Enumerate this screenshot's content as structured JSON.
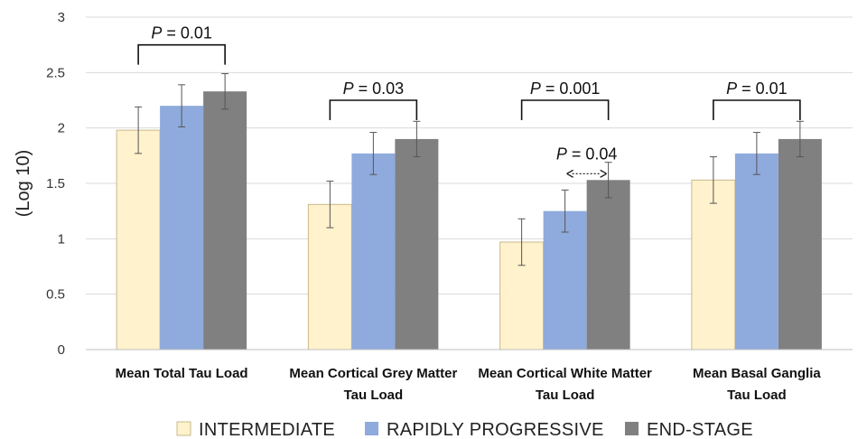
{
  "chart_data": {
    "type": "bar",
    "ylabel": "(Log 10)",
    "ylim": [
      0,
      3
    ],
    "yticks": [
      "0",
      "0.5",
      "1",
      "1.5",
      "2",
      "2.5",
      "3"
    ],
    "grid": true,
    "legend_position": "bottom",
    "categories": [
      [
        "Mean Total Tau Load"
      ],
      [
        "Mean Cortical Grey Matter",
        "Tau Load"
      ],
      [
        "Mean Cortical White Matter",
        "Tau Load"
      ],
      [
        "Mean Basal Ganglia",
        "Tau Load"
      ]
    ],
    "series": [
      {
        "name": "INTERMEDIATE",
        "color": "#fff2cc",
        "values": [
          1.98,
          1.31,
          0.97,
          1.53
        ],
        "errors": [
          0.21,
          0.21,
          0.21,
          0.21
        ]
      },
      {
        "name": "RAPIDLY PROGRESSIVE",
        "color": "#8faadc",
        "values": [
          2.2,
          1.77,
          1.25,
          1.77
        ],
        "errors": [
          0.19,
          0.19,
          0.19,
          0.19
        ]
      },
      {
        "name": "END-STAGE",
        "color": "#808080",
        "values": [
          2.33,
          1.9,
          1.53,
          1.9
        ],
        "errors": [
          0.16,
          0.16,
          0.16,
          0.16
        ]
      }
    ],
    "annotations": [
      {
        "label_prefix": "P",
        "label_value": " = 0.01",
        "category": 0,
        "from_series": 0,
        "to_series": 2,
        "level": 2.75,
        "style": "bracket"
      },
      {
        "label_prefix": "P",
        "label_value": " = 0.03",
        "category": 1,
        "from_series": 0,
        "to_series": 2,
        "level": 2.25,
        "style": "bracket"
      },
      {
        "label_prefix": "P",
        "label_value": " = 0.001",
        "category": 2,
        "from_series": 0,
        "to_series": 2,
        "level": 2.25,
        "style": "bracket"
      },
      {
        "label_prefix": "P",
        "label_value": " = 0.04",
        "category": 2,
        "from_series": 1,
        "to_series": 2,
        "level": 1.75,
        "style": "dotted-arrow"
      },
      {
        "label_prefix": "P",
        "label_value": " = 0.01",
        "category": 3,
        "from_series": 0,
        "to_series": 2,
        "level": 2.25,
        "style": "bracket"
      }
    ]
  }
}
